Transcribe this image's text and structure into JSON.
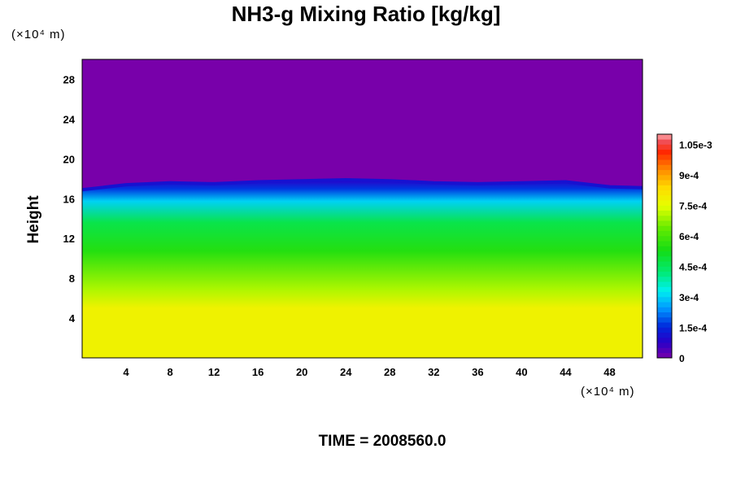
{
  "chart_data": {
    "type": "heatmap",
    "title": "NH3-g Mixing Ratio [kg/kg]",
    "ylabel": "Height",
    "xlabel": "",
    "x_unit": "(×10⁴ m)",
    "y_unit": "(×10⁴ m)",
    "xlim": [
      0,
      51
    ],
    "ylim": [
      0,
      30
    ],
    "x_ticks": [
      4,
      8,
      12,
      16,
      20,
      24,
      28,
      32,
      36,
      40,
      44,
      48
    ],
    "y_ticks": [
      4,
      8,
      12,
      16,
      20,
      24,
      28
    ],
    "colorbar": {
      "min": 0,
      "max": 0.0011,
      "tick_values": [
        0,
        0.00015,
        0.0003,
        0.00045,
        0.0006,
        0.00075,
        0.0009,
        0.00105
      ],
      "tick_labels": [
        "0",
        "1.5e-4",
        "3e-4",
        "4.5e-4",
        "6e-4",
        "7.5e-4",
        "9e-4",
        "1.05e-3"
      ]
    },
    "field_summary": {
      "lower_value": 0.00078,
      "lower_top_height": 12,
      "mid_value_range": [
        0.0003,
        0.00055
      ],
      "cloud_top_height_range": [
        16.8,
        18.0
      ],
      "upper_value": 0
    },
    "cloud_top_profile": {
      "x": [
        0,
        4,
        8,
        12,
        16,
        20,
        24,
        28,
        32,
        36,
        40,
        44,
        48,
        51
      ],
      "y": [
        16.9,
        17.4,
        17.6,
        17.5,
        17.7,
        17.8,
        17.9,
        17.8,
        17.6,
        17.5,
        17.6,
        17.7,
        17.2,
        17.1
      ]
    }
  },
  "footer": {
    "time_label": "TIME = 2008560.0"
  }
}
